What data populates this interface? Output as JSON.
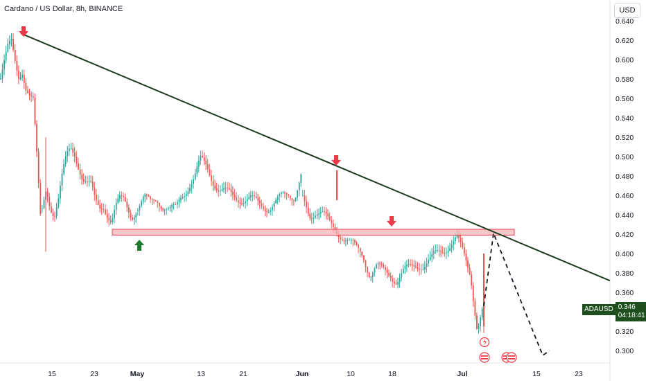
{
  "header": {
    "title": "Cardano / US Dollar, 8h, BINANCE"
  },
  "currency_button": "USD",
  "symbol_tag": {
    "symbol": "ADAUSD",
    "price": "0.346",
    "countdown": "04:18:41"
  },
  "colors": {
    "up": "#26a69a",
    "down": "#ef5350",
    "trendline": "#1e3b1e",
    "zone_fill": "#f4b5b8",
    "zone_stroke": "#e0434b",
    "marker_down": "#f23645",
    "marker_up": "#1b7a2d",
    "tag_bg": "#1f4e1f"
  },
  "chart_data": {
    "type": "candlestick",
    "symbol": "ADAUSD",
    "timeframe": "8h",
    "exchange": "BINANCE",
    "y_axis": {
      "range": [
        0.295,
        0.645
      ],
      "ticks": [
        "0.640",
        "0.620",
        "0.600",
        "0.580",
        "0.560",
        "0.540",
        "0.520",
        "0.500",
        "0.480",
        "0.460",
        "0.440",
        "0.420",
        "0.400",
        "0.380",
        "0.360",
        "0.340",
        "0.320",
        "0.300"
      ]
    },
    "x_axis": {
      "ticks": [
        "15",
        "23",
        "May",
        "13",
        "21",
        "Jun",
        "10",
        "18",
        "Jul",
        "15",
        "23"
      ]
    },
    "approx_closes": [
      [
        0.58,
        0.595,
        0.61,
        0.618,
        0.6,
        0.585,
        0.59,
        0.57,
        0.56,
        0.555,
        0.5,
        0.44
      ],
      [
        0.445,
        0.47,
        0.45,
        0.44,
        0.455,
        0.48,
        0.5,
        0.51,
        0.505,
        0.49,
        0.475,
        0.47,
        0.468,
        0.455,
        0.45,
        0.452,
        0.44,
        0.43,
        0.445,
        0.455,
        0.458,
        0.45,
        0.44,
        0.442
      ],
      [
        0.448,
        0.456,
        0.452,
        0.458,
        0.45,
        0.444,
        0.445,
        0.46,
        0.47,
        0.478,
        0.495,
        0.49,
        0.476,
        0.465,
        0.462,
        0.46,
        0.458,
        0.456,
        0.455,
        0.452,
        0.45,
        0.448,
        0.452,
        0.458,
        0.462,
        0.46,
        0.48
      ],
      [
        0.455,
        0.44,
        0.445,
        0.44,
        0.43,
        0.425,
        0.418,
        0.41,
        0.405,
        0.4,
        0.378,
        0.385,
        0.382,
        0.38,
        0.372,
        0.38,
        0.385,
        0.39,
        0.388,
        0.392,
        0.4,
        0.405,
        0.41,
        0.415,
        0.398,
        0.38,
        0.322,
        0.346
      ]
    ],
    "annotations": {
      "trendline": {
        "from": {
          "x_label": "Apr 5",
          "y": 0.627
        },
        "to": {
          "x_label": "Jul 28",
          "y": 0.372
        }
      },
      "support_zone": {
        "y_top": 0.425,
        "y_bottom": 0.419
      },
      "projection_path": [
        0.346,
        0.421,
        0.295
      ],
      "markers": [
        {
          "type": "down-arrow",
          "near_y": 0.627
        },
        {
          "type": "down-arrow",
          "near_y": 0.49
        },
        {
          "type": "down-arrow",
          "near_y": 0.424
        },
        {
          "type": "up-arrow",
          "near_y": 0.419
        }
      ]
    }
  }
}
